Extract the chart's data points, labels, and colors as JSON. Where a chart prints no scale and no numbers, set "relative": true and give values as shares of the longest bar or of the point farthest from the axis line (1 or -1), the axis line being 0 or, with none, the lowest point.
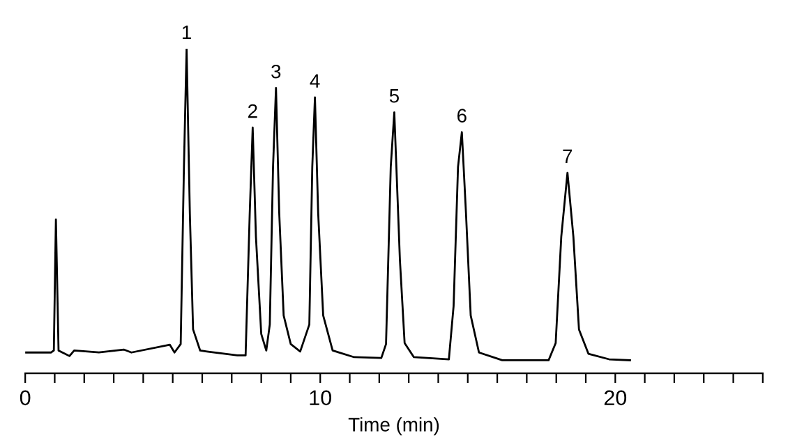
{
  "chart_data": {
    "type": "line",
    "relative": true,
    "xlabel": "Time (min)",
    "xlim": [
      0,
      25
    ],
    "xticks": [
      0,
      {
        "value": 1,
        "label": null
      },
      {
        "value": 2,
        "label": null
      },
      {
        "value": 3,
        "label": null
      },
      {
        "value": 4,
        "label": null
      },
      {
        "value": 5,
        "label": null
      },
      {
        "value": 6,
        "label": null
      },
      {
        "value": 7,
        "label": null
      },
      {
        "value": 8,
        "label": null
      },
      {
        "value": 9,
        "label": null
      },
      10,
      {
        "value": 11,
        "label": null
      },
      {
        "value": 12,
        "label": null
      },
      {
        "value": 13,
        "label": null
      },
      {
        "value": 14,
        "label": null
      },
      {
        "value": 15,
        "label": null
      },
      {
        "value": 16,
        "label": null
      },
      {
        "value": 17,
        "label": null
      },
      {
        "value": 18,
        "label": null
      },
      {
        "value": 19,
        "label": null
      },
      20,
      {
        "value": 21,
        "label": null
      },
      {
        "value": 22,
        "label": null
      },
      {
        "value": 23,
        "label": null
      },
      {
        "value": 24,
        "label": null
      },
      {
        "value": 25,
        "label": null
      }
    ],
    "grid": false,
    "legend": false,
    "marker": "none",
    "line_style": "solid",
    "series": [
      {
        "color": "#000000",
        "x": [
          0,
          0.88,
          0.97,
          1.04,
          1.13,
          1.5,
          1.66,
          2.5,
          3.34,
          3.6,
          4.9,
          5.06,
          5.27,
          5.38,
          5.47,
          5.58,
          5.69,
          5.93,
          6.16,
          7.19,
          7.47,
          7.61,
          7.71,
          7.82,
          8.0,
          8.17,
          8.29,
          8.4,
          8.5,
          8.61,
          8.76,
          9.0,
          9.32,
          9.63,
          9.73,
          9.82,
          9.93,
          10.1,
          10.42,
          11.13,
          12.07,
          12.23,
          12.39,
          12.51,
          12.7,
          12.86,
          13.17,
          14.36,
          14.52,
          14.67,
          14.8,
          14.94,
          15.1,
          15.38,
          16.17,
          17.74,
          17.98,
          18.17,
          18.38,
          18.58,
          18.77,
          19.09,
          19.79,
          20.5
        ],
        "values": [
          0.064,
          0.064,
          0.07,
          0.474,
          0.07,
          0.053,
          0.07,
          0.064,
          0.073,
          0.064,
          0.088,
          0.064,
          0.09,
          0.636,
          1.0,
          0.493,
          0.135,
          0.07,
          0.067,
          0.055,
          0.055,
          0.493,
          0.757,
          0.421,
          0.121,
          0.07,
          0.15,
          0.636,
          0.879,
          0.493,
          0.178,
          0.09,
          0.067,
          0.15,
          0.636,
          0.85,
          0.493,
          0.178,
          0.07,
          0.05,
          0.047,
          0.09,
          0.636,
          0.804,
          0.35,
          0.093,
          0.05,
          0.043,
          0.207,
          0.636,
          0.743,
          0.493,
          0.178,
          0.064,
          0.04,
          0.04,
          0.093,
          0.421,
          0.618,
          0.421,
          0.135,
          0.06,
          0.043,
          0.04
        ]
      }
    ],
    "annotations": [
      {
        "text": "1",
        "x": 5.47,
        "y": 1.0
      },
      {
        "text": "2",
        "x": 7.71,
        "y": 0.757
      },
      {
        "text": "3",
        "x": 8.5,
        "y": 0.879
      },
      {
        "text": "4",
        "x": 9.82,
        "y": 0.85
      },
      {
        "text": "5",
        "x": 12.51,
        "y": 0.804
      },
      {
        "text": "6",
        "x": 14.8,
        "y": 0.743
      },
      {
        "text": "7",
        "x": 18.38,
        "y": 0.618
      }
    ]
  }
}
